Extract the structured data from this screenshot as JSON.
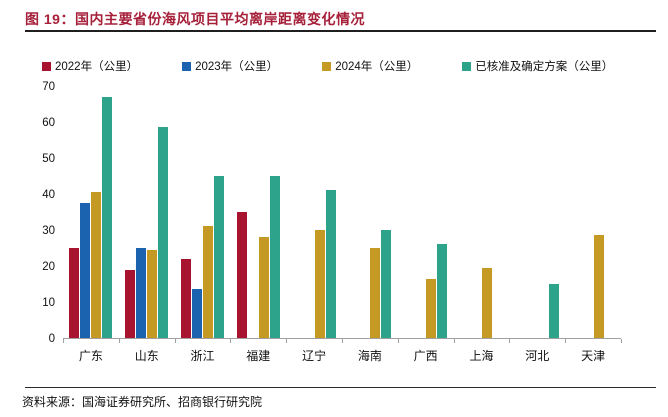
{
  "figure": {
    "title": "图 19：国内主要省份海风项目平均离岸距离变化情况",
    "source": "资料来源：国海证券研究所、招商银行研究院"
  },
  "colors": {
    "title_red": "#A6203A",
    "axis_gray": "#A0A0A0",
    "rule_dark": "#1F1F1F"
  },
  "chart_data": {
    "type": "bar",
    "title": "国内主要省份海风项目平均离岸距离变化情况",
    "categories": [
      "广东",
      "山东",
      "浙江",
      "福建",
      "辽宁",
      "海南",
      "广西",
      "上海",
      "河北",
      "天津"
    ],
    "series": [
      {
        "name": "2022年（公里）",
        "color": "#A81430",
        "values": [
          25,
          19,
          22,
          35,
          null,
          null,
          null,
          null,
          null,
          null
        ]
      },
      {
        "name": "2023年（公里）",
        "color": "#1C63AF",
        "values": [
          37.5,
          25,
          13.5,
          null,
          null,
          null,
          null,
          null,
          null,
          null
        ]
      },
      {
        "name": "2024年（公里）",
        "color": "#C49A24",
        "values": [
          40.5,
          24.5,
          31,
          28,
          30,
          25,
          16.5,
          19.5,
          null,
          28.5
        ]
      },
      {
        "name": "已核准及确定方案（公里）",
        "color": "#2EA38B",
        "values": [
          67,
          58.5,
          45,
          45,
          41,
          30,
          26,
          null,
          15,
          null
        ]
      }
    ],
    "xlabel": "",
    "ylabel": "",
    "yticks": [
      0,
      10,
      20,
      30,
      40,
      50,
      60,
      70
    ],
    "ylim": [
      0,
      70
    ],
    "grid": false,
    "legend_position": "top"
  }
}
